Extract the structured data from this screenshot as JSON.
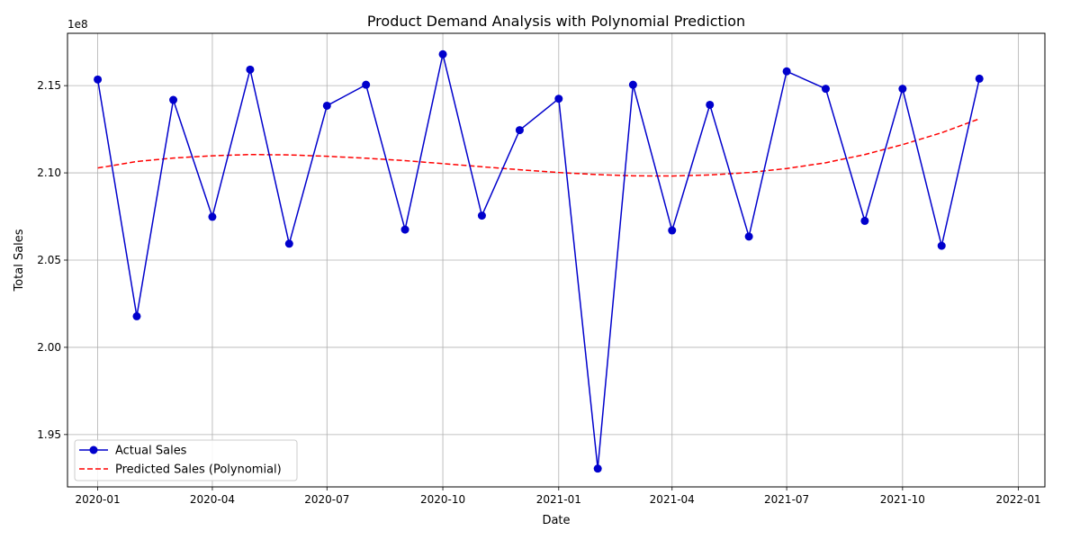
{
  "chart_data": {
    "type": "line",
    "title": "Product Demand Analysis with Polynomial Prediction",
    "xlabel": "Date",
    "ylabel": "Total Sales",
    "y_multiplier_label": "1e8",
    "x": [
      "2020-01",
      "2020-02",
      "2020-03",
      "2020-04",
      "2020-05",
      "2020-06",
      "2020-07",
      "2020-08",
      "2020-09",
      "2020-10",
      "2020-11",
      "2020-12",
      "2021-01",
      "2021-02",
      "2021-03",
      "2021-04",
      "2021-05",
      "2021-06",
      "2021-07",
      "2021-08",
      "2021-09",
      "2021-10",
      "2021-11",
      "2021-12"
    ],
    "series": [
      {
        "name": "Actual Sales",
        "style": "line-marker",
        "color": "#0000cc",
        "values": [
          215.35,
          201.78,
          214.18,
          207.48,
          215.92,
          205.94,
          213.85,
          215.05,
          206.75,
          216.8,
          207.55,
          212.45,
          214.25,
          193.05,
          215.05,
          206.7,
          213.9,
          206.35,
          215.82,
          214.82,
          207.25,
          214.82,
          205.82,
          215.4
        ]
      },
      {
        "name": "Predicted Sales (Polynomial)",
        "style": "dashed",
        "color": "#ff0000",
        "values": [
          210.28,
          210.65,
          210.85,
          210.98,
          211.05,
          211.03,
          210.95,
          210.84,
          210.7,
          210.53,
          210.35,
          210.18,
          210.02,
          209.9,
          209.83,
          209.82,
          209.88,
          210.02,
          210.25,
          210.58,
          211.05,
          211.62,
          212.3,
          213.1
        ]
      }
    ],
    "x_ticks": [
      "2020-01",
      "2020-04",
      "2020-07",
      "2020-10",
      "2021-01",
      "2021-04",
      "2021-07",
      "2021-10",
      "2022-01"
    ],
    "y_ticks": [
      "1.95",
      "2.00",
      "2.05",
      "2.10",
      "2.15"
    ],
    "y_tick_values": [
      195,
      200,
      205,
      210,
      215
    ],
    "ylim": [
      192.0,
      218.0
    ],
    "xlim": [
      "2019-12-08",
      "2022-01-22"
    ],
    "grid": true,
    "legend_position": "lower-left"
  }
}
